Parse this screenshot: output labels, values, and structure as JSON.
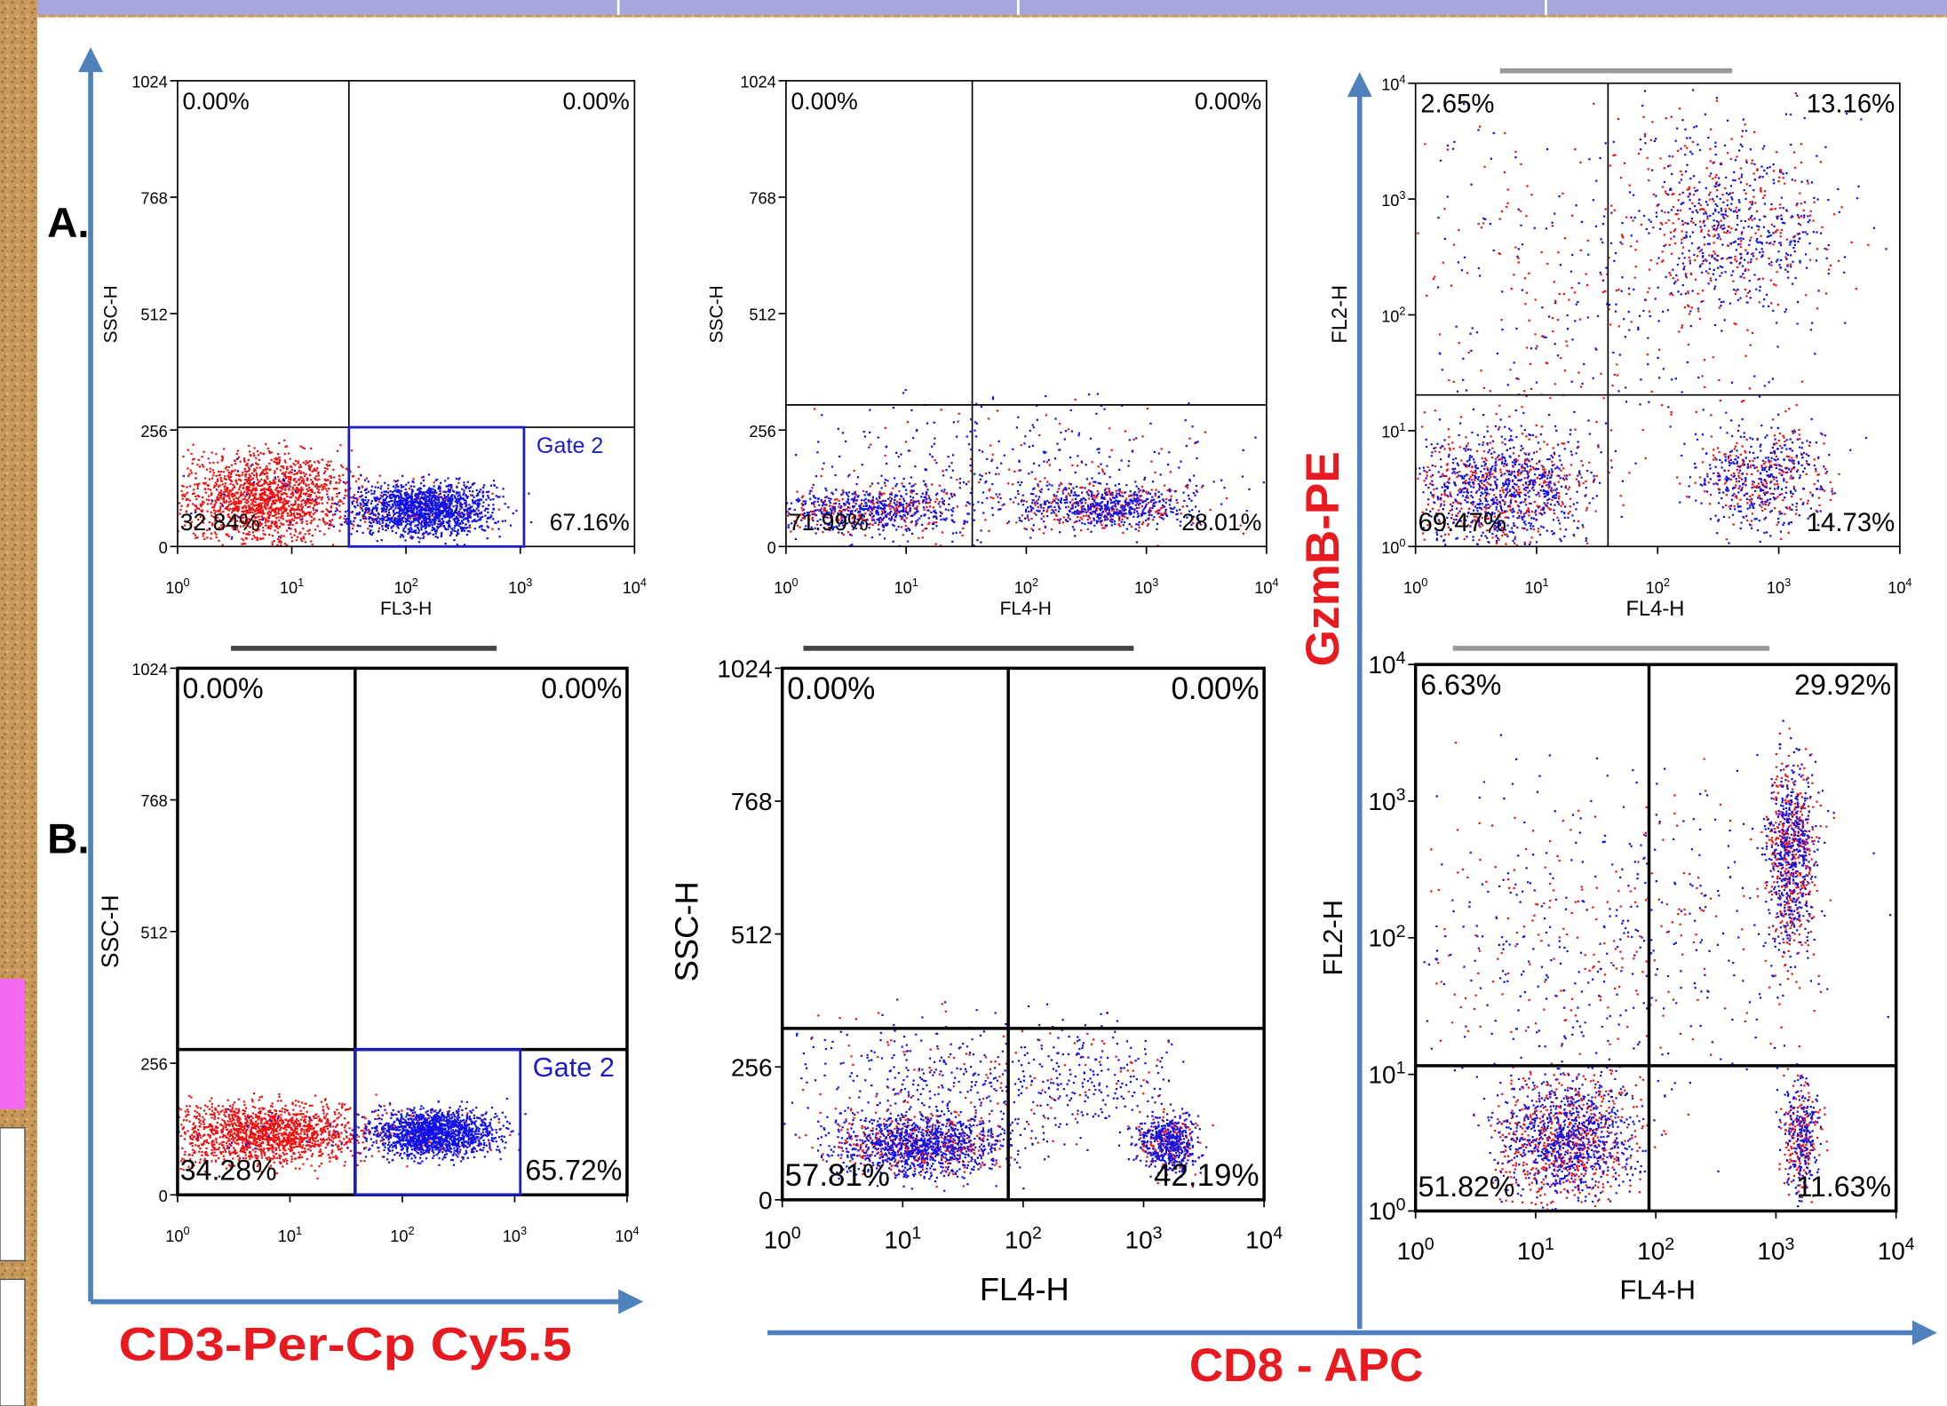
{
  "row_labels": [
    "A.",
    "B."
  ],
  "axis_titles": {
    "x_left": "CD3-Per-Cp Cy5.5",
    "x_right": "CD8 - APC",
    "y_right": "GzmB-PE"
  },
  "panels": [
    {
      "y_label": "SSC-H",
      "x_label": "FL3-H",
      "y_ticks": [
        "0",
        "256",
        "512",
        "768",
        "1024"
      ],
      "x_ticks": [
        {
          "base": "10",
          "exp": "0"
        },
        {
          "base": "10",
          "exp": "1"
        },
        {
          "base": "10",
          "exp": "2"
        },
        {
          "base": "10",
          "exp": "3"
        },
        {
          "base": "10",
          "exp": "4"
        }
      ],
      "quadrants": {
        "upper_left": "0.00%",
        "upper_right": "0.00%",
        "lower_left": "32.84%",
        "lower_right": "67.16%"
      },
      "gate": "Gate 2"
    },
    {
      "y_label": "SSC-H",
      "x_label": "FL4-H",
      "y_ticks": [
        "0",
        "256",
        "512",
        "768",
        "1024"
      ],
      "x_ticks": [
        {
          "base": "10",
          "exp": "0"
        },
        {
          "base": "10",
          "exp": "1"
        },
        {
          "base": "10",
          "exp": "2"
        },
        {
          "base": "10",
          "exp": "3"
        },
        {
          "base": "10",
          "exp": "4"
        }
      ],
      "quadrants": {
        "upper_left": "0.00%",
        "upper_right": "0.00%",
        "lower_left": "71.99%",
        "lower_right": "28.01%"
      }
    },
    {
      "y_label": "FL2-H",
      "x_label": "FL4-H",
      "y_ticks": [
        {
          "base": "10",
          "exp": "0"
        },
        {
          "base": "10",
          "exp": "1"
        },
        {
          "base": "10",
          "exp": "2"
        },
        {
          "base": "10",
          "exp": "3"
        },
        {
          "base": "10",
          "exp": "4"
        }
      ],
      "x_ticks": [
        {
          "base": "10",
          "exp": "0"
        },
        {
          "base": "10",
          "exp": "1"
        },
        {
          "base": "10",
          "exp": "2"
        },
        {
          "base": "10",
          "exp": "3"
        },
        {
          "base": "10",
          "exp": "4"
        }
      ],
      "quadrants": {
        "upper_left": "2.65%",
        "upper_right": "13.16%",
        "lower_left": "69.47%",
        "lower_right": "14.73%"
      }
    },
    {
      "y_label": "SSC-H",
      "y_ticks": [
        "0",
        "256",
        "512",
        "768",
        "1024"
      ],
      "x_ticks": [
        {
          "base": "10",
          "exp": "0"
        },
        {
          "base": "10",
          "exp": "1"
        },
        {
          "base": "10",
          "exp": "2"
        },
        {
          "base": "10",
          "exp": "3"
        },
        {
          "base": "10",
          "exp": "4"
        }
      ],
      "quadrants": {
        "upper_left": "0.00%",
        "upper_right": "0.00%",
        "lower_left": "34.28%",
        "lower_right": "65.72%"
      },
      "gate": "Gate 2"
    },
    {
      "y_label": "SSC-H",
      "x_label": "FL4-H",
      "y_ticks": [
        "0",
        "256",
        "512",
        "768",
        "1024"
      ],
      "x_ticks": [
        {
          "base": "10",
          "exp": "0"
        },
        {
          "base": "10",
          "exp": "1"
        },
        {
          "base": "10",
          "exp": "2"
        },
        {
          "base": "10",
          "exp": "3"
        },
        {
          "base": "10",
          "exp": "4"
        }
      ],
      "quadrants": {
        "upper_left": "0.00%",
        "upper_right": "0.00%",
        "lower_left": "57.81%",
        "lower_right": "42.19%"
      }
    },
    {
      "y_label": "FL2-H",
      "x_label": "FL4-H",
      "y_ticks": [
        {
          "base": "10",
          "exp": "0"
        },
        {
          "base": "10",
          "exp": "1"
        },
        {
          "base": "10",
          "exp": "2"
        },
        {
          "base": "10",
          "exp": "3"
        },
        {
          "base": "10",
          "exp": "4"
        }
      ],
      "x_ticks": [
        {
          "base": "10",
          "exp": "0"
        },
        {
          "base": "10",
          "exp": "1"
        },
        {
          "base": "10",
          "exp": "2"
        },
        {
          "base": "10",
          "exp": "3"
        },
        {
          "base": "10",
          "exp": "4"
        }
      ],
      "quadrants": {
        "upper_left": "6.63%",
        "upper_right": "29.92%",
        "lower_left": "51.82%",
        "lower_right": "11.63%"
      }
    }
  ]
}
